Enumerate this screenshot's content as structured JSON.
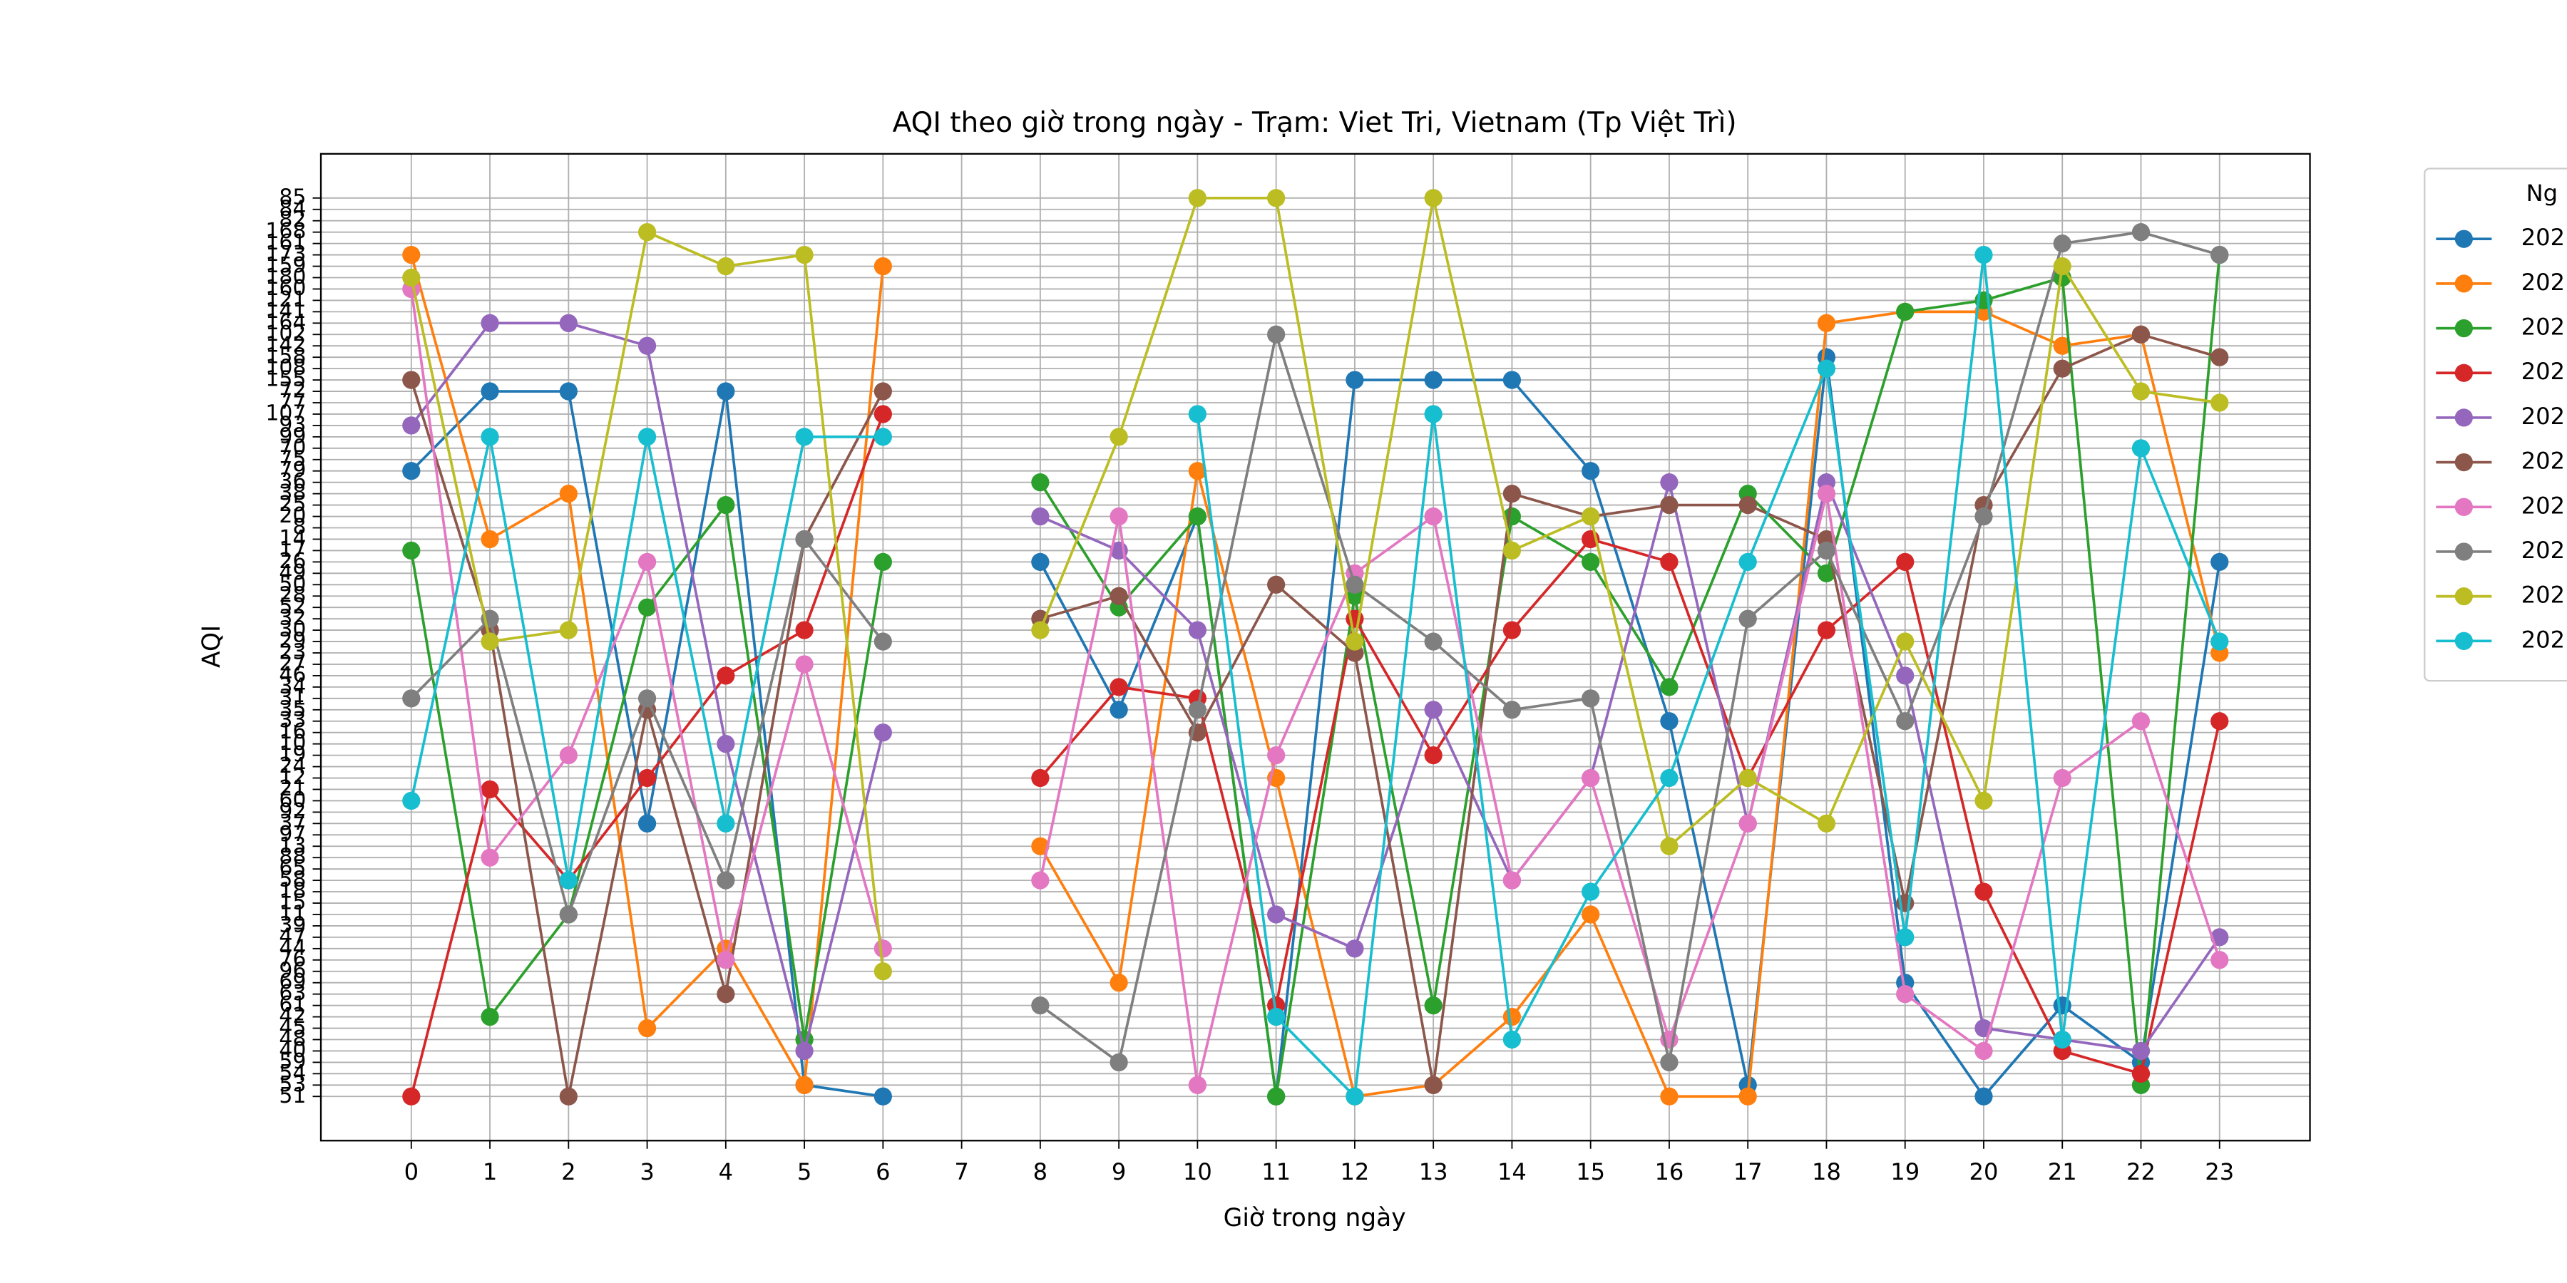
{
  "chart_data": {
    "type": "line",
    "title": "AQI theo giờ trong ngày - Trạm: Viet Tri, Vietnam (Tp Việt Trì)",
    "xlabel": "Giờ trong ngày",
    "ylabel": "AQI",
    "legend_title": "Ng",
    "legend": "outside-right",
    "grid": true,
    "x": [
      0,
      1,
      2,
      3,
      4,
      5,
      6,
      7,
      8,
      9,
      10,
      11,
      12,
      13,
      14,
      15,
      16,
      17,
      18,
      19,
      20,
      21,
      22,
      23
    ],
    "xlim": [
      -1.15,
      24.15
    ],
    "xticks": [
      0,
      1,
      2,
      3,
      4,
      5,
      6,
      7,
      8,
      9,
      10,
      11,
      12,
      13,
      14,
      15,
      16,
      17,
      18,
      19,
      20,
      21,
      22,
      23
    ],
    "ycategories": [
      "51",
      "53",
      "54",
      "59",
      "40",
      "48",
      "45",
      "42",
      "61",
      "63",
      "69",
      "96",
      "76",
      "44",
      "47",
      "39",
      "11",
      "15",
      "18",
      "58",
      "65",
      "88",
      "13",
      "97",
      "37",
      "92",
      "60",
      "21",
      "12",
      "24",
      "19",
      "10",
      "16",
      "33",
      "35",
      "31",
      "34",
      "46",
      "27",
      "23",
      "29",
      "30",
      "32",
      "52",
      "28",
      "50",
      "49",
      "26",
      "17",
      "14",
      "8",
      "20",
      "25",
      "38",
      "36",
      "79",
      "75",
      "70",
      "99",
      "93",
      "107",
      "77",
      "72",
      "155",
      "108",
      "158",
      "142",
      "102",
      "164",
      "141",
      "121",
      "160",
      "180",
      "159",
      "173",
      "161",
      "168",
      "82",
      "84",
      "85"
    ],
    "series": [
      {
        "name": "202",
        "color": "#1f77b4",
        "values": [
          "79",
          "72",
          "72",
          "37",
          "72",
          "53",
          "51",
          null,
          "26",
          "35",
          "20",
          "51",
          "155",
          "155",
          "155",
          "79",
          "33",
          "53",
          "158",
          "69",
          "51",
          "61",
          "59",
          "26"
        ]
      },
      {
        "name": "202",
        "color": "#ff7f0e",
        "values": [
          "173",
          "14",
          "38",
          "45",
          "44",
          "53",
          "159",
          null,
          "13",
          "69",
          "79",
          "12",
          "51",
          "53",
          "42",
          "11",
          "51",
          "51",
          "164",
          "141",
          "141",
          "142",
          "102",
          "23"
        ]
      },
      {
        "name": "202",
        "color": "#2ca02c",
        "values": [
          "17",
          "42",
          "11",
          "52",
          "25",
          "48",
          "26",
          null,
          "36",
          "52",
          "20",
          "51",
          "28",
          "61",
          "20",
          "26",
          "34",
          "38",
          "49",
          "141",
          "121",
          "180",
          "53",
          "173"
        ]
      },
      {
        "name": "202",
        "color": "#d62728",
        "values": [
          "51",
          "21",
          "58",
          "12",
          "46",
          "30",
          "107",
          null,
          "12",
          "34",
          "31",
          "61",
          "32",
          "19",
          "30",
          "14",
          "26",
          "12",
          "30",
          "26",
          "18",
          "40",
          "54",
          "33"
        ]
      },
      {
        "name": "202",
        "color": "#9467bd",
        "values": [
          "93",
          "164",
          "164",
          "142",
          "10",
          "40",
          "16",
          null,
          "20",
          "17",
          "30",
          "11",
          "44",
          "35",
          "58",
          "12",
          "36",
          "37",
          "36",
          "46",
          "45",
          "48",
          "40",
          "47"
        ]
      },
      {
        "name": "202",
        "color": "#8c564b",
        "values": [
          "155",
          "30",
          "51",
          "35",
          "63",
          "14",
          "72",
          null,
          "32",
          "28",
          "16",
          "50",
          "23",
          "53",
          "38",
          "20",
          "25",
          "25",
          "14",
          "15",
          "25",
          "108",
          "102",
          "158"
        ]
      },
      {
        "name": "202",
        "color": "#e377c2",
        "values": [
          "160",
          "88",
          "19",
          "26",
          "76",
          "27",
          "44",
          null,
          "58",
          "20",
          "53",
          "19",
          "49",
          "20",
          "58",
          "12",
          "48",
          "37",
          "38",
          "63",
          "40",
          "12",
          "33",
          "76"
        ]
      },
      {
        "name": "202",
        "color": "#7f7f7f",
        "values": [
          "31",
          "32",
          "11",
          "31",
          "58",
          "14",
          "29",
          null,
          "61",
          "59",
          "35",
          "102",
          "50",
          "29",
          "35",
          "31",
          "59",
          "32",
          "17",
          "33",
          "20",
          "161",
          "168",
          "173"
        ]
      },
      {
        "name": "202",
        "color": "#bcbd22",
        "values": [
          "180",
          "29",
          "30",
          "168",
          "159",
          "173",
          "96",
          null,
          "30",
          "99",
          "85",
          "85",
          "29",
          "85",
          "17",
          "20",
          "13",
          "12",
          "37",
          "29",
          "60",
          "159",
          "72",
          "77"
        ]
      },
      {
        "name": "202",
        "color": "#17becf",
        "values": [
          "60",
          "99",
          "58",
          "99",
          "37",
          "99",
          "99",
          null,
          null,
          null,
          "107",
          "42",
          "51",
          "107",
          "48",
          "18",
          "12",
          "26",
          "108",
          "47",
          "173",
          "48",
          "70",
          "29"
        ]
      }
    ]
  }
}
